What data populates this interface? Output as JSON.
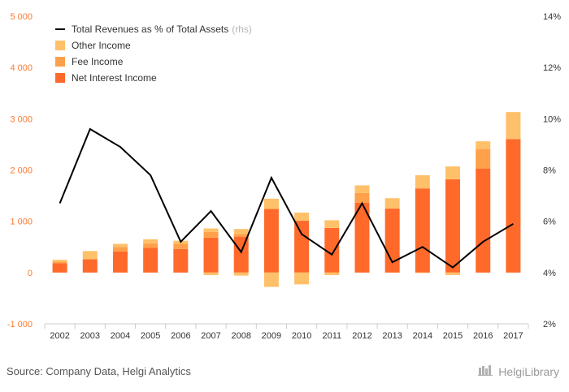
{
  "chart_data": {
    "type": "bar",
    "stacked": true,
    "categories": [
      "2002",
      "2003",
      "2004",
      "2005",
      "2006",
      "2007",
      "2008",
      "2009",
      "2010",
      "2011",
      "2012",
      "2013",
      "2014",
      "2015",
      "2016",
      "2017"
    ],
    "series": [
      {
        "name": "Net Interest Income",
        "type": "bar",
        "axis": "left",
        "color": "#ff6a2b",
        "values": [
          180,
          260,
          410,
          480,
          460,
          680,
          700,
          1240,
          1010,
          870,
          1360,
          1250,
          1640,
          1820,
          2030,
          2600
        ]
      },
      {
        "name": "Fee Income",
        "type": "bar",
        "axis": "left",
        "color": "#ffa04a",
        "values": [
          30,
          0,
          90,
          90,
          100,
          110,
          50,
          0,
          0,
          0,
          190,
          0,
          10,
          0,
          380,
          10
        ]
      },
      {
        "name": "Other Income",
        "type": "bar",
        "axis": "left",
        "color": "#ffc06a",
        "values": [
          40,
          160,
          60,
          80,
          60,
          70,
          100,
          200,
          160,
          150,
          150,
          200,
          250,
          250,
          150,
          520
        ]
      },
      {
        "name": "Other Income (negative)",
        "type": "bar-negative",
        "axis": "left",
        "color": "#ffc06a",
        "values": [
          0,
          0,
          0,
          0,
          0,
          -50,
          -60,
          -280,
          -230,
          -50,
          0,
          0,
          -10,
          -50,
          0,
          0
        ]
      },
      {
        "name": "Total Revenues as % of Total Assets",
        "type": "line",
        "axis": "right",
        "color": "#000000",
        "values": [
          6.7,
          9.6,
          8.9,
          7.8,
          5.2,
          6.4,
          4.8,
          7.7,
          5.5,
          4.7,
          6.7,
          4.4,
          5.0,
          4.2,
          5.2,
          5.9
        ]
      }
    ],
    "yaxis_left": {
      "min": -1000,
      "max": 5000,
      "ticks": [
        "-1 000",
        "0",
        "1 000",
        "2 000",
        "3 000",
        "4 000",
        "5 000"
      ]
    },
    "yaxis_right": {
      "min": 2,
      "max": 14,
      "ticks": [
        "2%",
        "4%",
        "6%",
        "8%",
        "10%",
        "12%",
        "14%"
      ]
    },
    "legend": {
      "position": "top-left",
      "items": [
        {
          "label": "Total Revenues as % of Total Assets",
          "suffix": "(rhs)",
          "kind": "line",
          "color": "#000000"
        },
        {
          "label": "Other Income",
          "kind": "bar",
          "color": "#ffc06a"
        },
        {
          "label": "Fee Income",
          "kind": "bar",
          "color": "#ffa04a"
        },
        {
          "label": "Net Interest Income",
          "kind": "bar",
          "color": "#ff6a2b"
        }
      ]
    },
    "grid": false
  },
  "footer": {
    "source": "Source: Company Data, Helgi Analytics",
    "brand": "HelgiLibrary"
  },
  "colors": {
    "left_axis_labels": "#ff7a33",
    "axis_labels": "#333333",
    "tick_line": "#cccccc"
  }
}
